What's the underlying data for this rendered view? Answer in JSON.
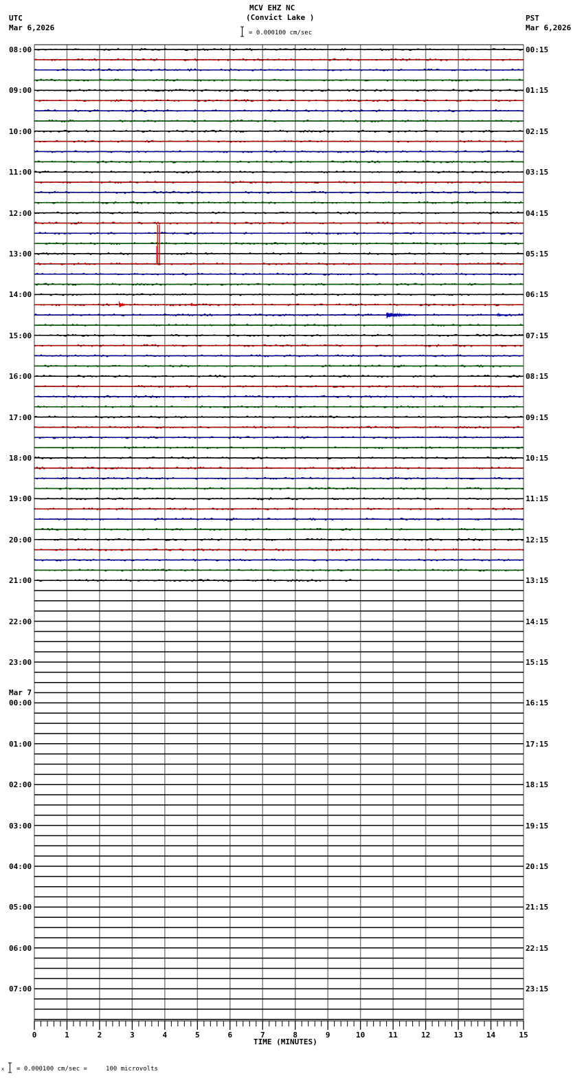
{
  "header": {
    "station": "MCV EHZ NC",
    "location": "(Convict Lake )",
    "scale_text": "= 0.000100 cm/sec",
    "left_tz": "UTC",
    "left_date": "Mar 6,2026",
    "right_tz": "PST",
    "right_date": "Mar 6,2026"
  },
  "footer": {
    "scale_text": "= 0.000100 cm/sec =     100 microvolts",
    "prefix": "x"
  },
  "colors": {
    "trace_cycle": [
      "#000000",
      "#cc0000",
      "#0000aa",
      "#006600"
    ],
    "grid": "#808080",
    "baseline": "#000000"
  },
  "chart_data": {
    "type": "line",
    "title": "MCV EHZ NC (Convict Lake )",
    "xlabel": "TIME (MINUTES)",
    "ylabel": "",
    "xlim": [
      0,
      15
    ],
    "x_ticks": [
      "0",
      "1",
      "2",
      "3",
      "4",
      "5",
      "6",
      "7",
      "8",
      "9",
      "10",
      "11",
      "12",
      "13",
      "14",
      "15"
    ],
    "rows_per_hour": 4,
    "row_minutes": 15,
    "left_labels": [
      {
        "row": 0,
        "text": "08:00"
      },
      {
        "row": 4,
        "text": "09:00"
      },
      {
        "row": 8,
        "text": "10:00"
      },
      {
        "row": 12,
        "text": "11:00"
      },
      {
        "row": 16,
        "text": "12:00"
      },
      {
        "row": 20,
        "text": "13:00"
      },
      {
        "row": 24,
        "text": "14:00"
      },
      {
        "row": 28,
        "text": "15:00"
      },
      {
        "row": 32,
        "text": "16:00"
      },
      {
        "row": 36,
        "text": "17:00"
      },
      {
        "row": 40,
        "text": "18:00"
      },
      {
        "row": 44,
        "text": "19:00"
      },
      {
        "row": 48,
        "text": "20:00"
      },
      {
        "row": 52,
        "text": "21:00"
      },
      {
        "row": 56,
        "text": "22:00"
      },
      {
        "row": 60,
        "text": "23:00"
      },
      {
        "row": 64,
        "text": "00:00",
        "date": "Mar 7"
      },
      {
        "row": 68,
        "text": "01:00"
      },
      {
        "row": 72,
        "text": "02:00"
      },
      {
        "row": 76,
        "text": "03:00"
      },
      {
        "row": 80,
        "text": "04:00"
      },
      {
        "row": 84,
        "text": "05:00"
      },
      {
        "row": 88,
        "text": "06:00"
      },
      {
        "row": 92,
        "text": "07:00"
      }
    ],
    "right_labels": [
      "00:15",
      "01:15",
      "02:15",
      "03:15",
      "04:15",
      "05:15",
      "06:15",
      "07:15",
      "08:15",
      "09:15",
      "10:15",
      "11:15",
      "12:15",
      "13:15",
      "14:15",
      "15:15",
      "16:15",
      "17:15",
      "18:15",
      "19:15",
      "20:15",
      "21:15",
      "22:15",
      "23:15"
    ],
    "total_rows": 96,
    "data_rows": 53,
    "last_row_end_minute": 10,
    "events": [
      {
        "row": 17,
        "minute": 3.8,
        "amplitude": "large",
        "color": "red",
        "note": "spike spanning rows 16-21"
      },
      {
        "row": 25,
        "minute": 2.6,
        "amplitude": "small",
        "color": "red"
      },
      {
        "row": 25,
        "minute": 4.8,
        "amplitude": "small",
        "color": "red"
      },
      {
        "row": 26,
        "minute": 10.8,
        "amplitude": "medium",
        "color": "blue"
      },
      {
        "row": 26,
        "minute": 14.3,
        "amplitude": "small",
        "color": "blue"
      }
    ]
  }
}
